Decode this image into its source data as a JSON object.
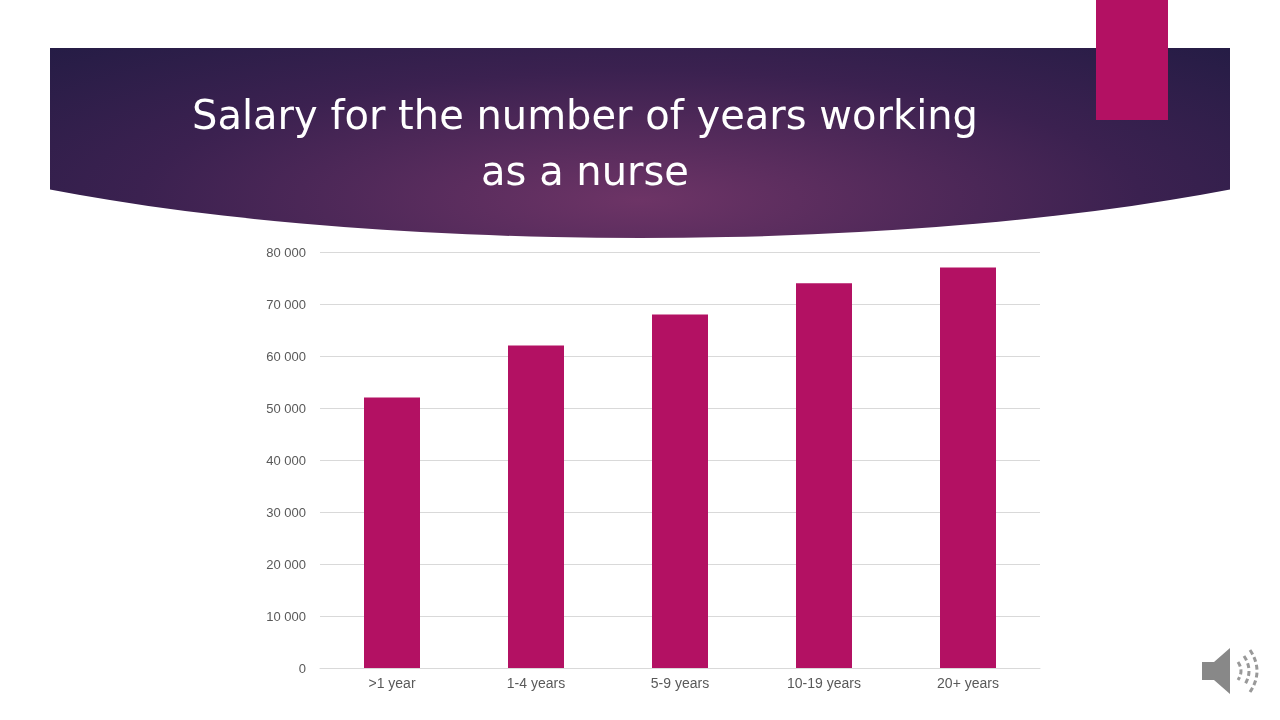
{
  "chart_data": {
    "type": "bar",
    "title": "Salary for the number of years working\nas a nurse",
    "categories": [
      ">1 year",
      "1-4 years",
      "5-9 years",
      "10-19 years",
      "20+ years"
    ],
    "values": [
      52000,
      62000,
      68000,
      74000,
      77000
    ],
    "color": "#b31163",
    "ylim": [
      0,
      80000
    ],
    "yticks": [
      {
        "value": 0,
        "label": "0"
      },
      {
        "value": 10000,
        "label": "10 000"
      },
      {
        "value": 20000,
        "label": "20 000"
      },
      {
        "value": 30000,
        "label": "30 000"
      },
      {
        "value": 40000,
        "label": "40 000"
      },
      {
        "value": 50000,
        "label": "50 000"
      },
      {
        "value": 60000,
        "label": "60 000"
      },
      {
        "value": 70000,
        "label": "70 000"
      },
      {
        "value": 80000,
        "label": "80 000"
      }
    ],
    "grid": "y"
  }
}
